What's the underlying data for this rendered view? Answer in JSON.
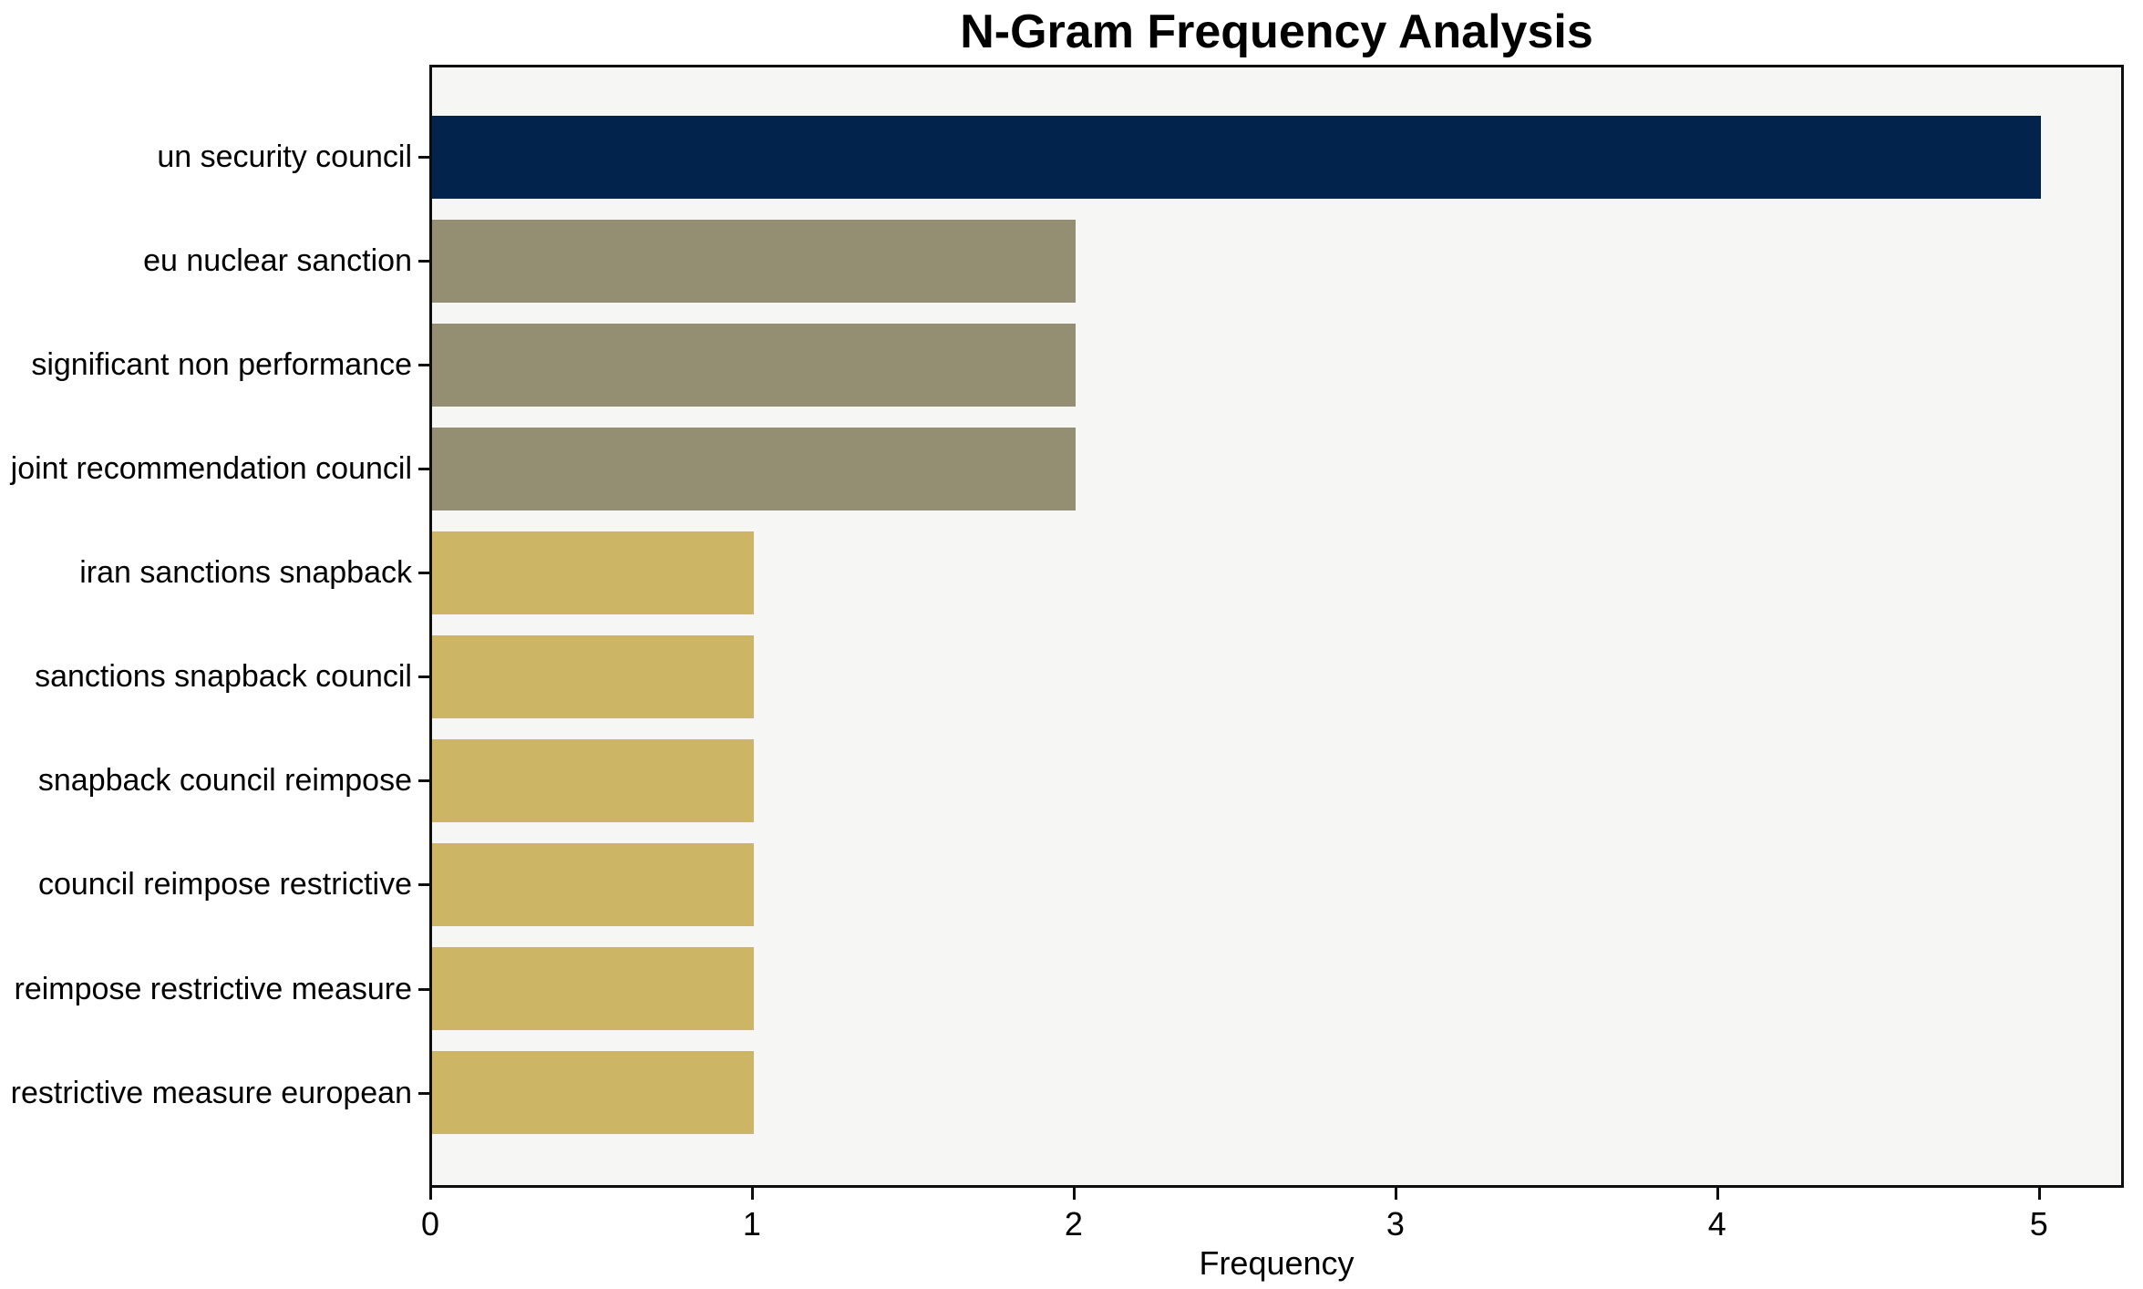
{
  "chart_data": {
    "type": "bar",
    "orientation": "horizontal",
    "title": "N-Gram Frequency Analysis",
    "xlabel": "Frequency",
    "ylabel": "",
    "categories": [
      "un security council",
      "eu nuclear sanction",
      "significant non performance",
      "joint recommendation council",
      "iran sanctions snapback",
      "sanctions snapback council",
      "snapback council reimpose",
      "council reimpose restrictive",
      "reimpose restrictive measure",
      "restrictive measure european"
    ],
    "values": [
      5,
      2,
      2,
      2,
      1,
      1,
      1,
      1,
      1,
      1
    ],
    "bar_colors": [
      "#02234B",
      "#948F73",
      "#948F73",
      "#948F73",
      "#CCB665",
      "#CCB665",
      "#CCB665",
      "#CCB665",
      "#CCB665",
      "#CCB665"
    ],
    "xticks": [
      "0",
      "1",
      "2",
      "3",
      "4",
      "5"
    ],
    "xlim": [
      0,
      5.25
    ],
    "grid": false,
    "legend_position": "none",
    "colors": {
      "navy": "#02234B",
      "olive": "#948F73",
      "gold": "#CCB665",
      "plot_background": "#F6F6F4",
      "figure_background": "#FFFFFF",
      "spine": "#0E0E0E",
      "text": "#000000"
    }
  }
}
